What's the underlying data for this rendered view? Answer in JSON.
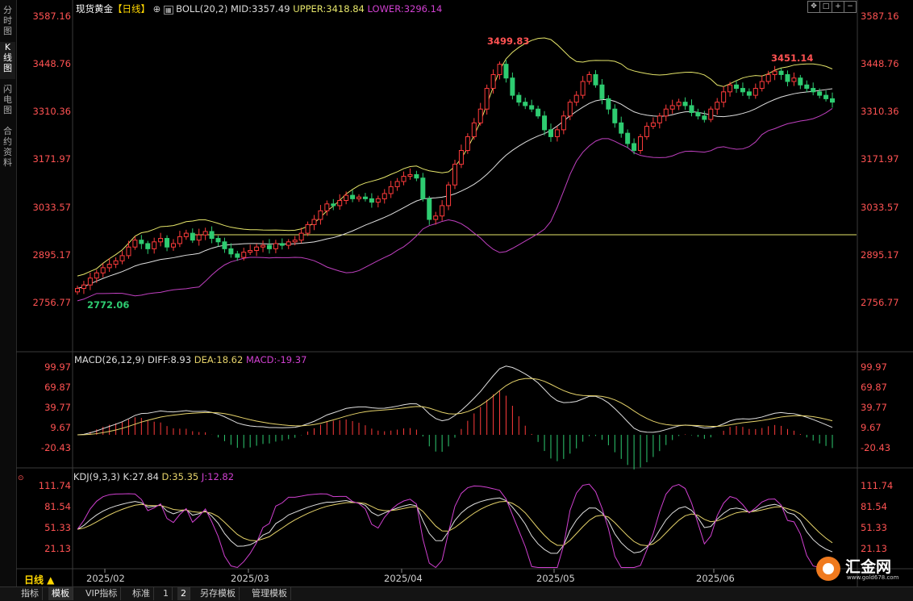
{
  "sidebar": {
    "tabs": [
      {
        "label": "分时图",
        "active": false
      },
      {
        "label": "K线图",
        "active": true
      },
      {
        "label": "闪电图",
        "active": false
      },
      {
        "label": "合约资料",
        "active": false
      }
    ]
  },
  "main_title": {
    "name": "现货黄金",
    "period": "【日线】",
    "indicator": "BOLL(20,2)",
    "mid": "MID:3357.49",
    "upper": "UPPER:3418.84",
    "lower": "LOWER:3296.14"
  },
  "price_ticks": [
    "3587.16",
    "3448.76",
    "3310.36",
    "3171.97",
    "3033.57",
    "2895.17",
    "2756.77"
  ],
  "annotations": {
    "high1": "3499.83",
    "high2": "3451.14",
    "low1": "2772.06"
  },
  "macd_title": {
    "name": "MACD(26,12,9)",
    "diff": "DIFF:8.93",
    "dea": "DEA:18.62",
    "macd": "MACD:-19.37"
  },
  "macd_ticks": [
    "99.97",
    "69.87",
    "39.77",
    "9.67",
    "-20.43"
  ],
  "kdj_title": {
    "name": "KDJ(9,3,3)",
    "k": "K:27.84",
    "d": "D:35.35",
    "j": "J:12.82"
  },
  "kdj_ticks": [
    "111.74",
    "81.54",
    "51.33",
    "21.13"
  ],
  "dates": [
    "2025/02",
    "2025/03",
    "2025/04",
    "2025/05",
    "2025/06"
  ],
  "period_button": "日线 ▲",
  "bottom_tabs": [
    {
      "label": "指标",
      "active": false
    },
    {
      "label": "模板",
      "active": true
    },
    {
      "label": "VIP指标",
      "active": false
    },
    {
      "label": "标准",
      "active": false
    },
    {
      "label": "1",
      "active": false
    },
    {
      "label": "2",
      "active": true
    },
    {
      "label": "另存模板",
      "active": false
    },
    {
      "label": "管理模板",
      "active": false
    }
  ],
  "logo": {
    "text": "汇金网",
    "url_text": "www.gold678.com"
  },
  "colors": {
    "up": "#ff3b3b",
    "down": "#2ecc71",
    "upper": "#e6e66a",
    "mid": "#e0e0e0",
    "lower": "#c040c0",
    "diff": "#e0e0e0",
    "dea": "#e6d36a",
    "k": "#e0e0e0",
    "d": "#e6d36a",
    "j": "#d040d0"
  },
  "chart_data": {
    "type": "candlestick",
    "ylim": [
      2700,
      3600
    ],
    "closes": [
      2800,
      2810,
      2830,
      2845,
      2860,
      2870,
      2880,
      2895,
      2920,
      2940,
      2930,
      2915,
      2935,
      2945,
      2920,
      2930,
      2950,
      2960,
      2940,
      2955,
      2965,
      2945,
      2935,
      2915,
      2900,
      2890,
      2905,
      2910,
      2920,
      2925,
      2915,
      2930,
      2925,
      2935,
      2940,
      2960,
      2985,
      3000,
      3025,
      3045,
      3040,
      3055,
      3070,
      3060,
      3065,
      3060,
      3050,
      3060,
      3075,
      3095,
      3110,
      3125,
      3130,
      3120,
      3060,
      3000,
      3010,
      3040,
      3100,
      3160,
      3200,
      3240,
      3280,
      3320,
      3380,
      3420,
      3450,
      3410,
      3360,
      3340,
      3330,
      3320,
      3300,
      3260,
      3240,
      3260,
      3300,
      3340,
      3360,
      3400,
      3420,
      3390,
      3350,
      3320,
      3280,
      3250,
      3220,
      3200,
      3240,
      3270,
      3280,
      3300,
      3320,
      3330,
      3340,
      3330,
      3310,
      3300,
      3290,
      3320,
      3340,
      3370,
      3390,
      3380,
      3370,
      3360,
      3380,
      3400,
      3420,
      3430,
      3420,
      3400,
      3410,
      3390,
      3380,
      3370,
      3360,
      3350,
      3340
    ]
  }
}
